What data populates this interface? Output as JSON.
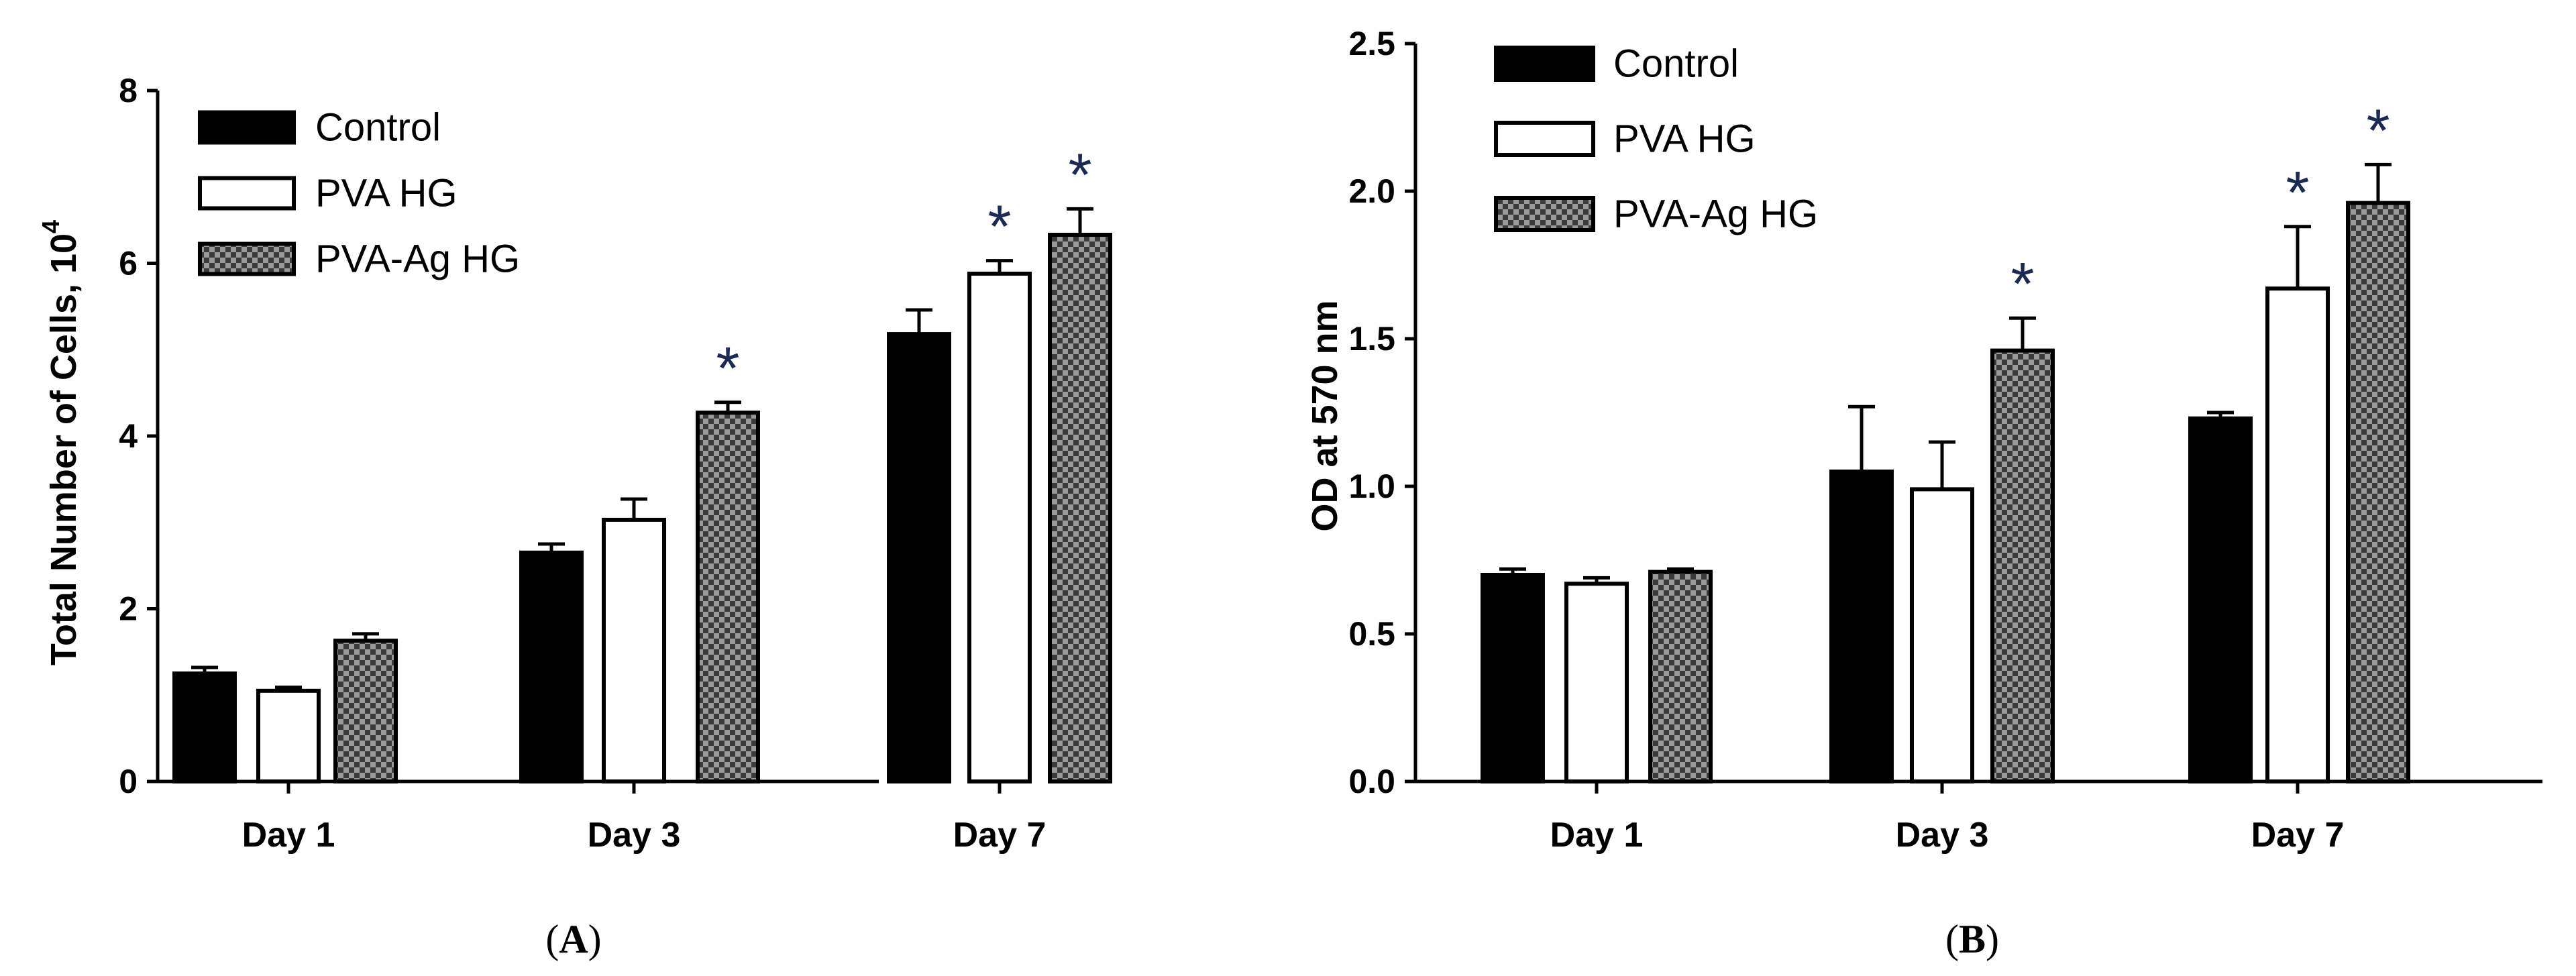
{
  "chart_data": [
    {
      "type": "bar",
      "panel_label": "(A)",
      "title": "",
      "xlabel": "",
      "ylabel": "Total Number of Cells, 10",
      "ylabel_exponent": "4",
      "ylim": [
        0,
        8
      ],
      "yticks": [
        "0",
        "2",
        "4",
        "6",
        "8"
      ],
      "ytick_values": [
        0,
        2,
        4,
        6,
        8
      ],
      "categories": [
        "Day 1",
        "Day 3",
        "Day 7"
      ],
      "legend_position": "top-left",
      "series": [
        {
          "name": "Control",
          "style": "solid",
          "values": [
            1.25,
            2.65,
            5.18
          ],
          "errors": [
            0.07,
            0.1,
            0.28
          ],
          "significant": [
            false,
            false,
            false
          ]
        },
        {
          "name": "PVA HG",
          "style": "open",
          "values": [
            1.05,
            3.03,
            5.88
          ],
          "errors": [
            0.04,
            0.24,
            0.15
          ],
          "significant": [
            false,
            false,
            true
          ]
        },
        {
          "name": "PVA-Ag HG",
          "style": "checkered",
          "values": [
            1.63,
            4.27,
            6.33
          ],
          "errors": [
            0.08,
            0.12,
            0.3
          ],
          "significant": [
            false,
            true,
            true
          ]
        }
      ],
      "significance_marker": "*"
    },
    {
      "type": "bar",
      "panel_label": "(B)",
      "title": "",
      "xlabel": "",
      "ylabel": "OD at 570 nm",
      "ylim": [
        0,
        2.5
      ],
      "yticks": [
        "0.0",
        "0.5",
        "1.0",
        "1.5",
        "2.0",
        "2.5"
      ],
      "ytick_values": [
        0,
        0.5,
        1.0,
        1.5,
        2.0,
        2.5
      ],
      "categories": [
        "Day 1",
        "Day 3",
        "Day 7"
      ],
      "legend_position": "top-left",
      "series": [
        {
          "name": "Control",
          "style": "solid",
          "values": [
            0.7,
            1.05,
            1.23
          ],
          "errors": [
            0.02,
            0.22,
            0.02
          ],
          "significant": [
            false,
            false,
            false
          ]
        },
        {
          "name": "PVA HG",
          "style": "open",
          "values": [
            0.67,
            0.99,
            1.67
          ],
          "errors": [
            0.02,
            0.16,
            0.21
          ],
          "significant": [
            false,
            false,
            true
          ]
        },
        {
          "name": "PVA-Ag HG",
          "style": "checkered",
          "values": [
            0.71,
            1.46,
            1.96
          ],
          "errors": [
            0.01,
            0.11,
            0.13
          ],
          "significant": [
            false,
            true,
            true
          ]
        }
      ],
      "significance_marker": "*"
    }
  ],
  "colors": {
    "bar_solid": "#000000",
    "bar_open_fill": "#ffffff",
    "checker_dark": "#3a3a3a",
    "checker_light": "#9a9a9a",
    "axis": "#000000",
    "significance": "#1a2a52"
  }
}
